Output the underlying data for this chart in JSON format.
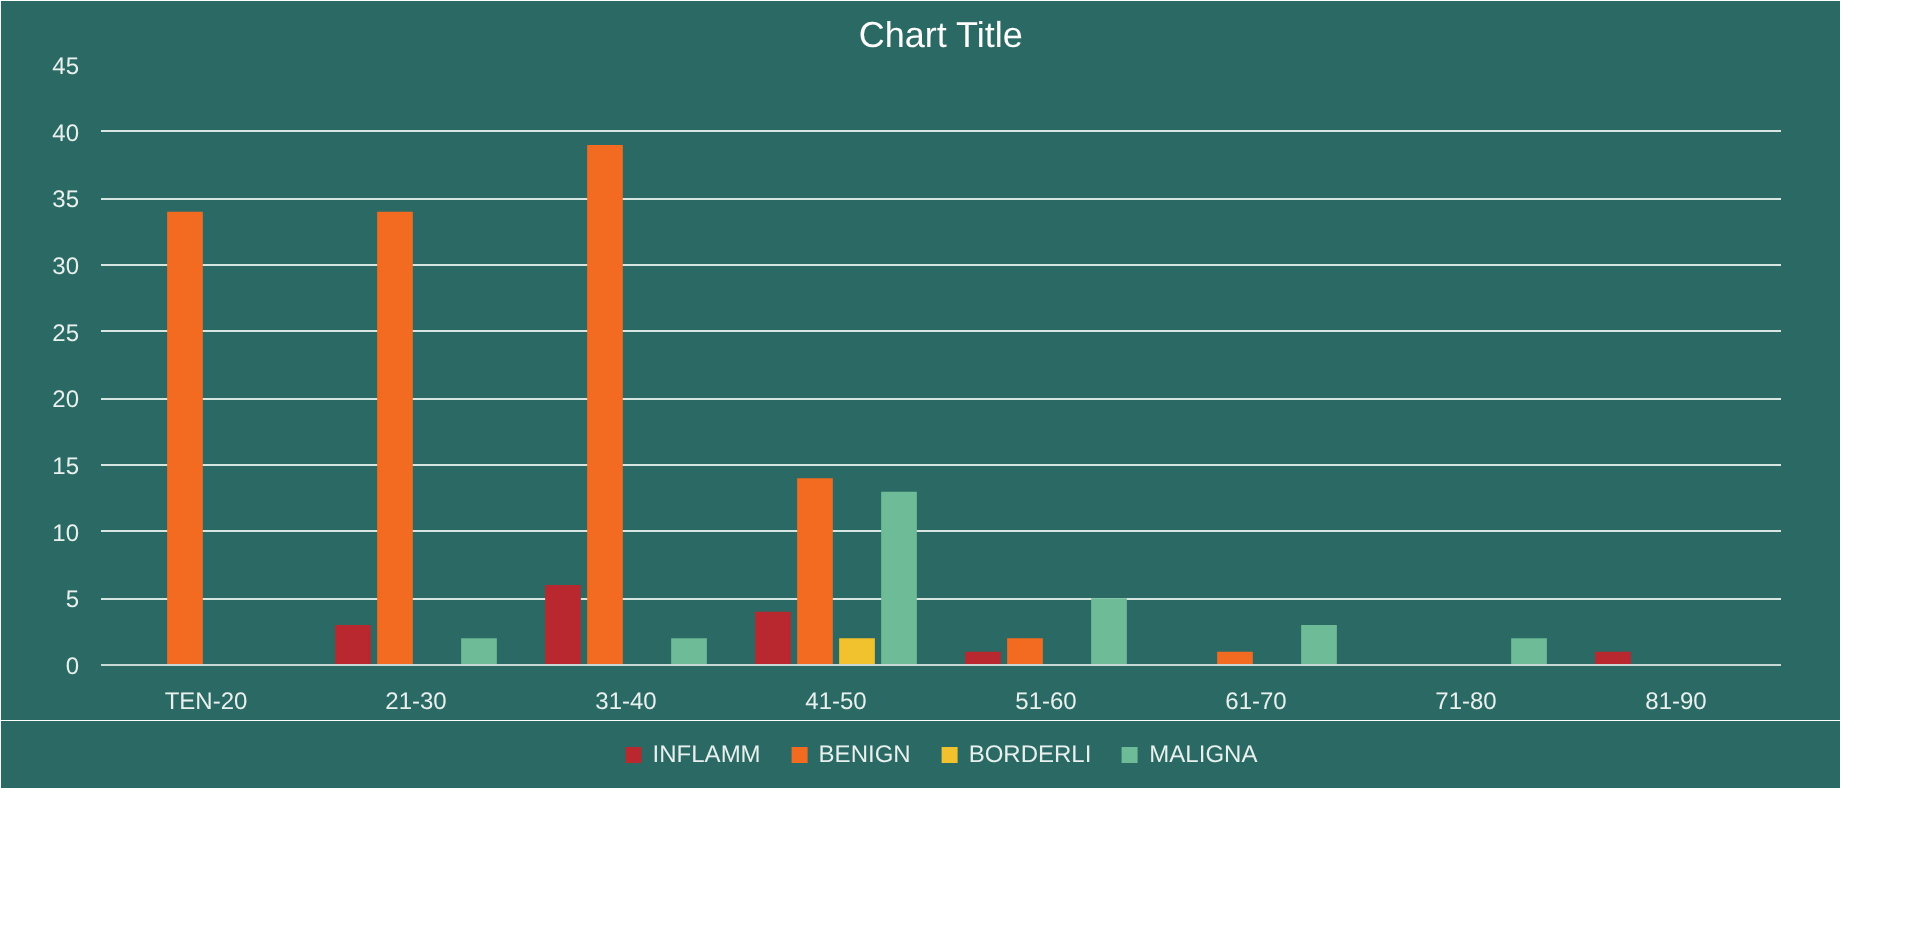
{
  "chart_data": {
    "type": "bar",
    "title": "Chart Title",
    "categories": [
      "TEN-20",
      "21-30",
      "31-40",
      "41-50",
      "51-60",
      "61-70",
      "71-80",
      "81-90"
    ],
    "series": [
      {
        "name": "INFLAMM",
        "color": "#b8282e",
        "values": [
          0,
          3,
          6,
          4,
          1,
          0,
          0,
          1
        ]
      },
      {
        "name": "BENIGN",
        "color": "#f26b21",
        "values": [
          34,
          34,
          39,
          14,
          2,
          1,
          0,
          0
        ]
      },
      {
        "name": "BORDERLI",
        "color": "#f2c12e",
        "values": [
          0,
          0,
          0,
          2,
          0,
          0,
          0,
          0
        ]
      },
      {
        "name": "MALIGNA",
        "color": "#6dbb97",
        "values": [
          0,
          2,
          2,
          13,
          5,
          3,
          2,
          0
        ]
      }
    ],
    "ylim": [
      0,
      45
    ],
    "yticks": [
      0,
      5,
      10,
      15,
      20,
      25,
      30,
      35,
      40,
      45
    ],
    "grid": "y",
    "legend": "bottom"
  }
}
